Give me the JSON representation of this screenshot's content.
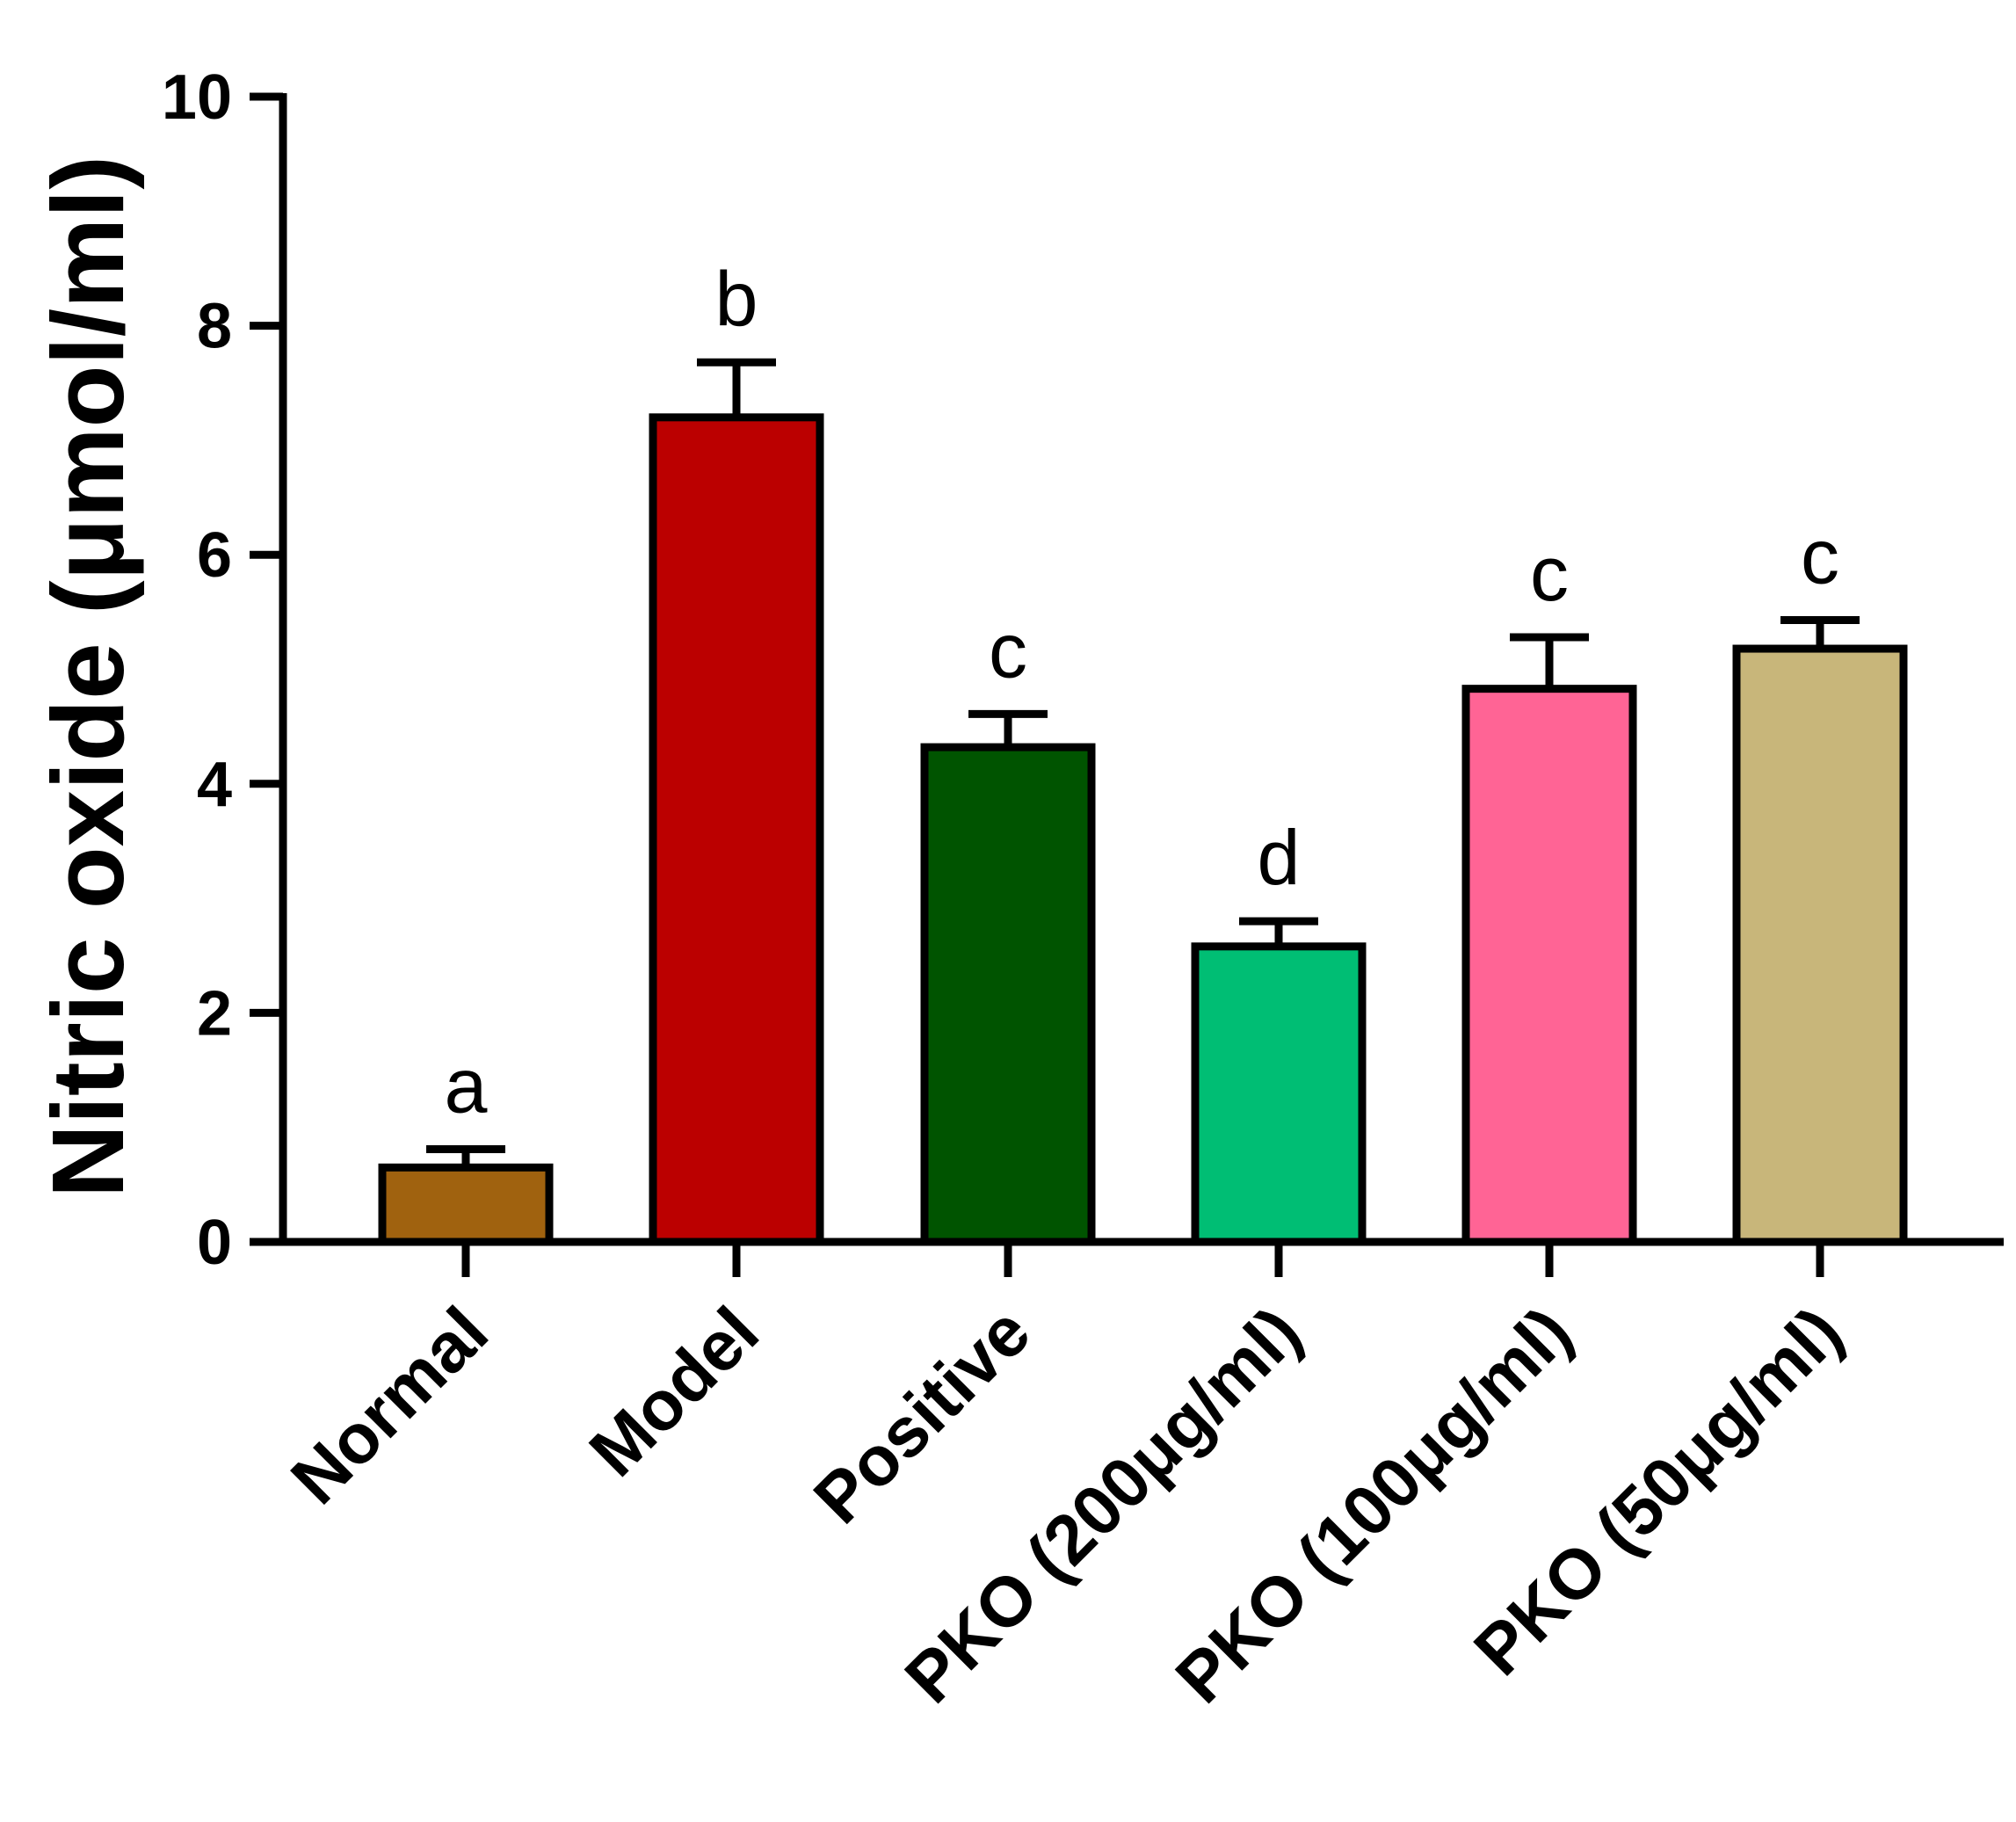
{
  "chart_data": {
    "type": "bar",
    "title": "",
    "xlabel": "",
    "ylabel": "Nitric oxide (μmol/ml)",
    "ylim": [
      0,
      10
    ],
    "yticks": [
      "0",
      "2",
      "4",
      "6",
      "8",
      "10"
    ],
    "categories": [
      "Normal",
      "Model",
      "Positive",
      "PKO (200μg/ml)",
      "PKO (100μg/ml)",
      "PKO (50μg/ml)"
    ],
    "values": [
      0.65,
      7.2,
      4.32,
      2.58,
      4.83,
      5.18
    ],
    "errors": [
      0.16,
      0.48,
      0.29,
      0.22,
      0.45,
      0.25
    ],
    "significance": [
      "a",
      "b",
      "c",
      "d",
      "c",
      "c"
    ],
    "colors": [
      "#A0620F",
      "#BB0000",
      "#005400",
      "#00BE74",
      "#FF6495",
      "#C8B67A"
    ],
    "grid": false,
    "legend": "none"
  }
}
